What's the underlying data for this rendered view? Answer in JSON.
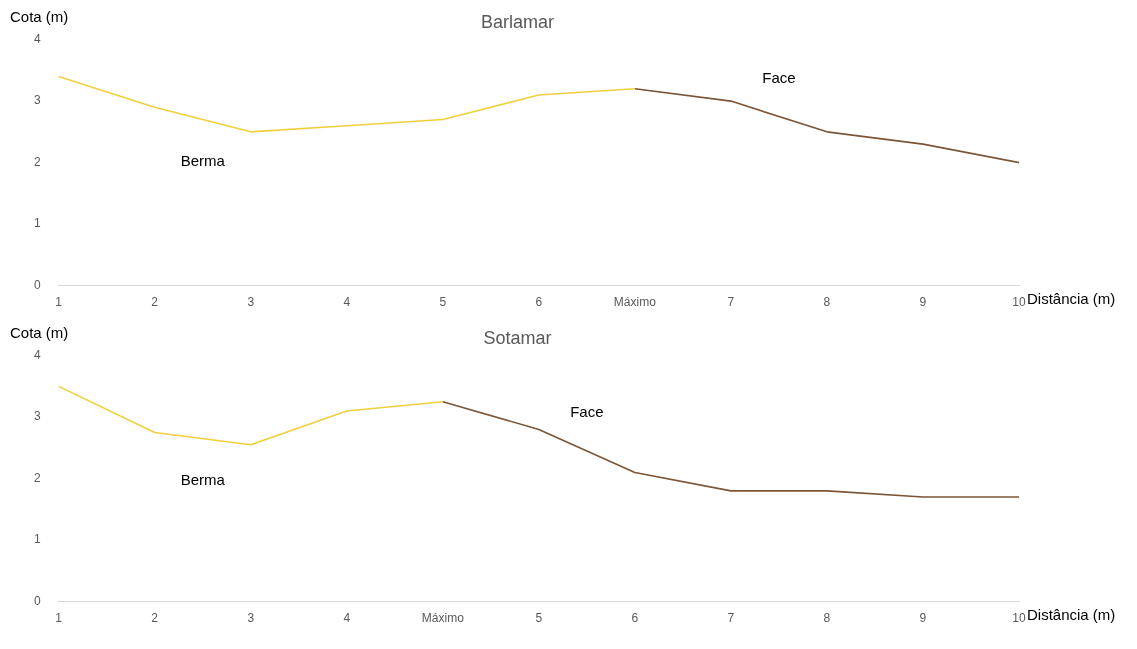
{
  "chart_data": [
    {
      "type": "line",
      "title": "Barlamar",
      "xlabel": "Distância (m)",
      "ylabel": "Cota (m)",
      "categories": [
        "1",
        "2",
        "3",
        "4",
        "5",
        "6",
        "Máximo",
        "7",
        "8",
        "9",
        "10"
      ],
      "series": [
        {
          "name": "Berma",
          "color": "#f2cf3c",
          "values": [
            3.4,
            2.9,
            2.5,
            2.6,
            2.7,
            3.1,
            3.2,
            null,
            null,
            null,
            null
          ]
        },
        {
          "name": "Face",
          "color": "#7b5535",
          "values": [
            null,
            null,
            null,
            null,
            null,
            null,
            3.2,
            3.0,
            2.5,
            2.3,
            2.0
          ]
        }
      ],
      "ylim": [
        0,
        4
      ],
      "yticks": [
        0,
        1,
        2,
        3,
        4
      ],
      "grid": false,
      "legend": false,
      "marker": "none",
      "line_style": "solid"
    },
    {
      "type": "line",
      "title": "Sotamar",
      "xlabel": "Distância (m)",
      "ylabel": "Cota (m)",
      "categories": [
        "1",
        "2",
        "3",
        "4",
        "Máximo",
        "5",
        "6",
        "7",
        "8",
        "9",
        "10"
      ],
      "series": [
        {
          "name": "Berma",
          "color": "#f2cf3c",
          "values": [
            3.5,
            2.75,
            2.55,
            3.1,
            3.25,
            null,
            null,
            null,
            null,
            null,
            null
          ]
        },
        {
          "name": "Face",
          "color": "#7b5535",
          "values": [
            null,
            null,
            null,
            null,
            3.25,
            2.8,
            2.1,
            1.8,
            1.8,
            1.7,
            1.7
          ]
        }
      ],
      "ylim": [
        0,
        4
      ],
      "yticks": [
        0,
        1,
        2,
        3,
        4
      ],
      "grid": false,
      "legend": false,
      "marker": "none",
      "line_style": "solid"
    }
  ]
}
